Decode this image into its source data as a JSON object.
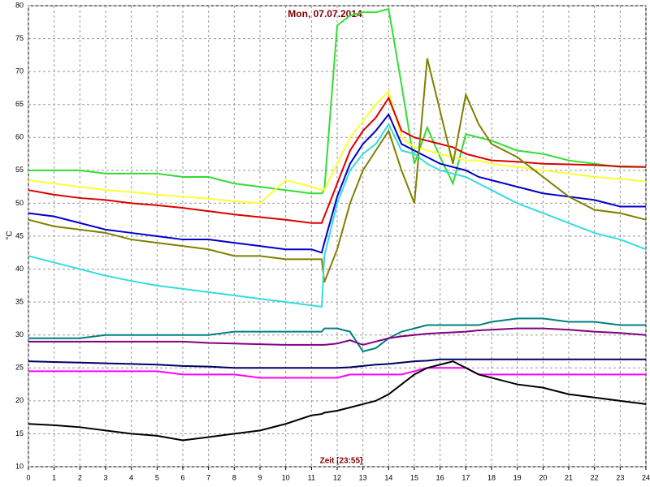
{
  "chart_data": {
    "type": "line",
    "title": "Mon, 07.07.2014",
    "x_label": "Zeit [23:55]",
    "y_label": "°C",
    "x": [
      0,
      1,
      2,
      3,
      4,
      5,
      6,
      7,
      8,
      9,
      10,
      11,
      11.4,
      11.5,
      12,
      12.5,
      13,
      13.5,
      14,
      14.5,
      15,
      15.5,
      16,
      16.5,
      17,
      17.5,
      18,
      19,
      20,
      21,
      22,
      23,
      24
    ],
    "series": [
      {
        "color": "#33dd33",
        "values": [
          55,
          55,
          55,
          54.5,
          54.5,
          54.5,
          54,
          54,
          53,
          52.5,
          52,
          51.5,
          51.5,
          52,
          77,
          78.5,
          79,
          79,
          79.5,
          68,
          56,
          61.5,
          57,
          53,
          60.5,
          60,
          59.5,
          58,
          57.5,
          56.5,
          56,
          55.5,
          55.5
        ]
      },
      {
        "color": "#ffff33",
        "values": [
          53.5,
          53,
          52.5,
          52,
          51.7,
          51.3,
          51,
          50.7,
          50.3,
          50,
          53.5,
          52.5,
          52,
          52,
          56,
          60,
          62.5,
          65,
          67,
          60,
          58.5,
          58,
          57.5,
          57,
          56.5,
          56.5,
          56,
          55.5,
          55,
          54.5,
          54,
          53.7,
          53.3
        ]
      },
      {
        "color": "#dd0000",
        "values": [
          52,
          51.3,
          50.8,
          50.5,
          50,
          49.7,
          49.3,
          48.8,
          48.3,
          47.9,
          47.5,
          47,
          47,
          48,
          53,
          58,
          61,
          63,
          66,
          61,
          60,
          59.5,
          59,
          58.5,
          57.5,
          57,
          56.5,
          56.3,
          56,
          55.9,
          55.8,
          55.6,
          55.5
        ]
      },
      {
        "color": "#0000cc",
        "values": [
          48.5,
          48,
          47,
          46,
          45.5,
          45,
          44.5,
          44.5,
          44,
          43.5,
          43,
          43,
          42.5,
          44,
          51,
          56,
          59,
          61,
          63.5,
          59,
          58,
          57,
          56,
          55.5,
          55,
          54,
          53.5,
          52.5,
          51.5,
          51,
          50.5,
          49.5,
          49.5
        ]
      },
      {
        "color": "#808000",
        "values": [
          47.5,
          46.5,
          46,
          45.5,
          44.5,
          44,
          43.5,
          43,
          42,
          42,
          41.5,
          41.5,
          41.5,
          38,
          43,
          50,
          55,
          58,
          61,
          55,
          50,
          72,
          64,
          56,
          66.5,
          62,
          59,
          57,
          54,
          51,
          49,
          48.5,
          47.5
        ]
      },
      {
        "color": "#33dddd",
        "values": [
          42,
          41,
          40,
          39,
          38.2,
          37.5,
          37,
          36.5,
          36,
          35.5,
          35,
          34.5,
          34.3,
          42,
          50,
          55,
          57.5,
          59,
          62,
          58,
          57.5,
          56,
          55,
          54.5,
          54,
          53,
          52,
          50,
          48.5,
          47,
          45.5,
          44.5,
          43
        ]
      },
      {
        "color": "#008080",
        "values": [
          29.5,
          29.5,
          29.5,
          30,
          30,
          30,
          30,
          30,
          30.5,
          30.5,
          30.5,
          30.5,
          30.5,
          31,
          31,
          30.5,
          27.5,
          28,
          29.5,
          30.5,
          31,
          31.5,
          31.5,
          31.5,
          31.5,
          31.5,
          32,
          32.5,
          32.5,
          32,
          32,
          31.5,
          31.5
        ]
      },
      {
        "color": "#800080",
        "values": [
          29,
          29,
          29,
          29,
          29,
          29,
          29,
          28.8,
          28.7,
          28.6,
          28.5,
          28.5,
          28.5,
          28.5,
          28.7,
          29.2,
          28.5,
          29,
          29.5,
          29.8,
          30,
          30.2,
          30.3,
          30.4,
          30.5,
          30.7,
          30.8,
          31,
          31,
          30.8,
          30.5,
          30.3,
          30
        ]
      },
      {
        "color": "#000066",
        "values": [
          26,
          25.9,
          25.8,
          25.7,
          25.6,
          25.5,
          25.3,
          25.2,
          25,
          25,
          25,
          25,
          25,
          25,
          25,
          25.1,
          25.3,
          25.5,
          25.6,
          25.8,
          26,
          26.1,
          26.3,
          26.3,
          26.3,
          26.3,
          26.3,
          26.3,
          26.3,
          26.3,
          26.3,
          26.3,
          26.3
        ]
      },
      {
        "color": "#ff00ff",
        "values": [
          24.5,
          24.5,
          24.5,
          24.5,
          24.5,
          24.5,
          24,
          24,
          24,
          23.5,
          23.5,
          23.5,
          23.5,
          23.5,
          23.5,
          24,
          24,
          24,
          24,
          24,
          24.5,
          25,
          25,
          25,
          25,
          24,
          24,
          24,
          24,
          24,
          24,
          24,
          24
        ]
      },
      {
        "color": "#000000",
        "values": [
          16.5,
          16.3,
          16,
          15.5,
          15,
          14.7,
          14,
          14.5,
          15,
          15.5,
          16.5,
          17.8,
          18,
          18.2,
          18.5,
          19,
          19.5,
          20,
          21,
          22.5,
          24,
          25,
          25.5,
          26,
          25,
          24,
          23.5,
          22.5,
          22,
          21,
          20.5,
          20,
          19.5
        ]
      }
    ],
    "xlim": [
      0,
      24
    ],
    "xticks": [
      0,
      1,
      2,
      3,
      4,
      5,
      6,
      7,
      8,
      9,
      10,
      11,
      12,
      13,
      14,
      15,
      16,
      17,
      18,
      19,
      20,
      21,
      22,
      23,
      24
    ],
    "ylim": [
      10,
      80
    ],
    "yticks": [
      10,
      15,
      20,
      25,
      30,
      35,
      40,
      45,
      50,
      55,
      60,
      65,
      70,
      75,
      80
    ],
    "grid": true
  }
}
